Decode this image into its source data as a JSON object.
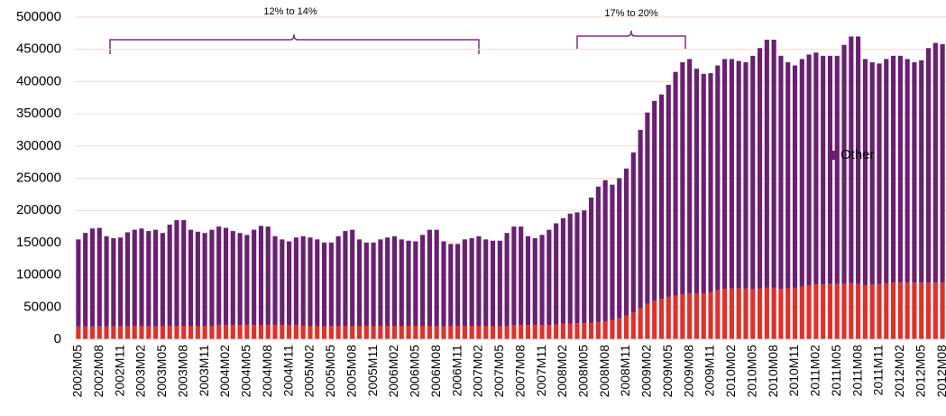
{
  "chart_data": {
    "type": "stacked_bar",
    "categories": [
      "2002M05",
      null,
      null,
      "2002M08",
      null,
      null,
      "2002M11",
      null,
      null,
      "2003M02",
      null,
      null,
      "2003M05",
      null,
      null,
      "2003M08",
      null,
      null,
      "2003M11",
      null,
      null,
      "2004M02",
      null,
      null,
      "2004M05",
      null,
      null,
      "2004M08",
      null,
      null,
      "2004M11",
      null,
      null,
      "2005M02",
      null,
      null,
      "2005M05",
      null,
      null,
      "2005M08",
      null,
      null,
      "2005M11",
      null,
      null,
      "2006M02",
      null,
      null,
      "2006M05",
      null,
      null,
      "2006M08",
      null,
      null,
      "2006M11",
      null,
      null,
      "2007M02",
      null,
      null,
      "2007M05",
      null,
      null,
      "2007M08",
      null,
      null,
      "2007M11",
      null,
      null,
      "2008M02",
      null,
      null,
      "2008M05",
      null,
      null,
      "2008M08",
      null,
      null,
      "2008M11",
      null,
      null,
      "2009M02",
      null,
      null,
      "2009M05",
      null,
      null,
      "2009M08",
      null,
      null,
      "2009M11",
      null,
      null,
      "2010M02",
      null,
      null,
      "2010M05",
      null,
      null,
      "2010M08",
      null,
      null,
      "2010M11",
      null,
      null,
      "2011M02",
      null,
      null,
      "2011M05",
      null,
      null,
      "2011M08",
      null,
      null,
      "2011M11",
      null,
      null,
      "2012M02",
      null,
      null,
      "2012M05",
      null,
      null,
      "2012M08"
    ],
    "series": [
      {
        "color": "#e0302a",
        "values": [
          20000,
          20000,
          20000,
          20000,
          20000,
          20000,
          20000,
          20000,
          21000,
          21000,
          21000,
          21000,
          21000,
          21000,
          21000,
          21000,
          21000,
          21000,
          21000,
          21000,
          22000,
          22000,
          22000,
          22000,
          22000,
          22000,
          22000,
          22000,
          22000,
          22000,
          22000,
          22000,
          21000,
          21000,
          21000,
          21000,
          21000,
          21000,
          21000,
          21000,
          21000,
          21000,
          21000,
          21000,
          21000,
          21000,
          21000,
          21000,
          21000,
          21000,
          21000,
          21000,
          21000,
          21000,
          21000,
          21000,
          21000,
          21000,
          21000,
          21000,
          21000,
          21000,
          22000,
          22000,
          22000,
          22000,
          22000,
          22000,
          23000,
          24000,
          24000,
          25000,
          25000,
          26000,
          27000,
          28000,
          30000,
          33000,
          37000,
          42000,
          48000,
          55000,
          60000,
          63000,
          66000,
          68000,
          70000,
          71000,
          71000,
          71000,
          73000,
          76000,
          78000,
          79000,
          79000,
          79000,
          78000,
          79000,
          80000,
          80000,
          78000,
          79000,
          80000,
          82000,
          84000,
          85000,
          85000,
          86000,
          86000,
          86000,
          87000,
          86000,
          84000,
          85000,
          86000,
          87000,
          88000,
          88000,
          88000,
          88000,
          88000,
          88000,
          88000,
          88000
        ]
      },
      {
        "name": "Other",
        "color": "#6a1f73",
        "values": [
          135000,
          145000,
          152000,
          153000,
          140000,
          137000,
          138000,
          146000,
          149000,
          151000,
          147000,
          149000,
          144000,
          157000,
          164000,
          164000,
          149000,
          146000,
          144000,
          149000,
          153000,
          151000,
          146000,
          143000,
          140000,
          148000,
          154000,
          153000,
          138000,
          133000,
          130000,
          136000,
          139000,
          137000,
          134000,
          129000,
          129000,
          139000,
          147000,
          149000,
          134000,
          129000,
          129000,
          134000,
          137000,
          139000,
          134000,
          132000,
          131000,
          141000,
          149000,
          149000,
          131000,
          127000,
          127000,
          134000,
          136000,
          139000,
          134000,
          132000,
          132000,
          144000,
          153000,
          153000,
          138000,
          135000,
          140000,
          148000,
          157000,
          164000,
          171000,
          172000,
          175000,
          194000,
          210000,
          219000,
          210000,
          217000,
          228000,
          248000,
          277000,
          297000,
          310000,
          317000,
          329000,
          347000,
          360000,
          364000,
          349000,
          341000,
          340000,
          349000,
          357000,
          356000,
          353000,
          351000,
          362000,
          373000,
          385000,
          385000,
          362000,
          351000,
          345000,
          353000,
          358000,
          360000,
          355000,
          354000,
          354000,
          371000,
          383000,
          384000,
          351000,
          345000,
          342000,
          348000,
          352000,
          352000,
          347000,
          342000,
          345000,
          364000,
          372000,
          370000
        ]
      }
    ],
    "ylim": [
      0,
      500000
    ],
    "yticks": [
      0,
      50000,
      100000,
      150000,
      200000,
      250000,
      300000,
      350000,
      400000,
      450000,
      500000
    ],
    "grid": true,
    "annotations": [
      "12% to 14%",
      "17% to 20%"
    ]
  }
}
